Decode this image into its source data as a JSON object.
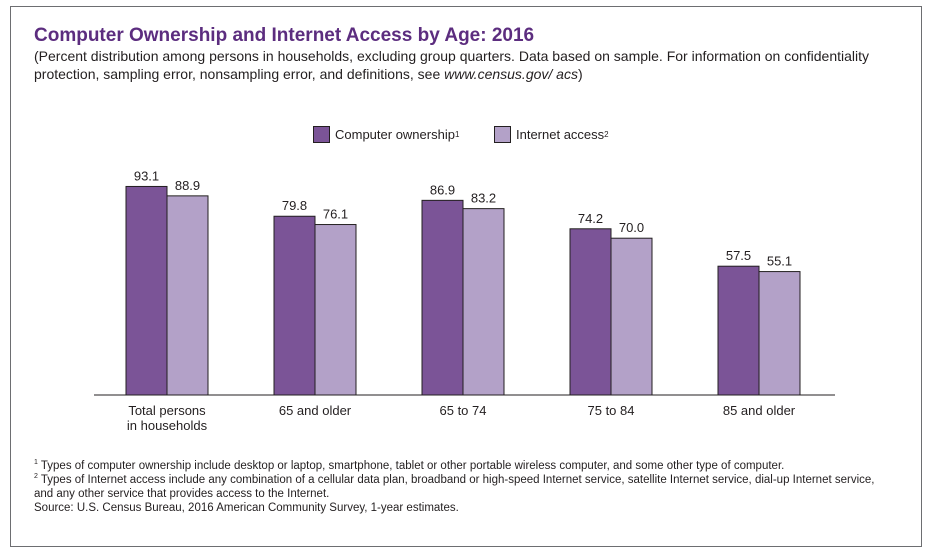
{
  "title": "Computer Ownership and Internet Access by Age: 2016",
  "subtitle": {
    "text": "(Percent distribution among persons in households, excluding group quarters. Data based on sample. For information on confidentiality protection, sampling error, nonsampling error, and definitions, see ",
    "url": "www.census.gov/ acs",
    "close": ")"
  },
  "legend": {
    "computer": {
      "label": "Computer ownership",
      "note_mark": "1"
    },
    "internet": {
      "label": "Internet access",
      "note_mark": "2"
    }
  },
  "colors": {
    "computer": "#7b5497",
    "internet": "#b3a1c8",
    "title": "#5c2d7f"
  },
  "notes": {
    "note1_mark": "1",
    "note1": " Types of computer ownership include desktop or laptop, smartphone, tablet or other portable wireless computer, and some other type of computer.",
    "note2_mark": "2",
    "note2": " Types of Internet access include any combination of a cellular data plan, broadband or high-speed Internet service, satellite Internet service, dial-up Internet service, and any other service that provides access to the Internet.",
    "source": "Source: U.S. Census Bureau, 2016 American Community Survey, 1-year estimates."
  },
  "chart_data": {
    "type": "bar",
    "title": "Computer Ownership and Internet Access by Age: 2016",
    "categories": [
      "Total persons in households",
      "65 and older",
      "65 to 74",
      "75 to 84",
      "85 and older"
    ],
    "category_lines": [
      [
        "Total persons",
        "in households"
      ],
      [
        "65 and older"
      ],
      [
        "65 to 74"
      ],
      [
        "75 to 84"
      ],
      [
        "85 and older"
      ]
    ],
    "series": [
      {
        "name": "Computer ownership",
        "values": [
          93.1,
          79.8,
          86.9,
          74.2,
          57.5
        ]
      },
      {
        "name": "Internet access",
        "values": [
          88.9,
          76.1,
          83.2,
          70.0,
          55.1
        ]
      }
    ],
    "value_labels": [
      [
        "93.1",
        "79.8",
        "86.9",
        "74.2",
        "57.5"
      ],
      [
        "88.9",
        "76.1",
        "83.2",
        "70.0",
        "55.1"
      ]
    ],
    "ylim": [
      0,
      100
    ],
    "grid": false,
    "legend_position": "top-center"
  }
}
